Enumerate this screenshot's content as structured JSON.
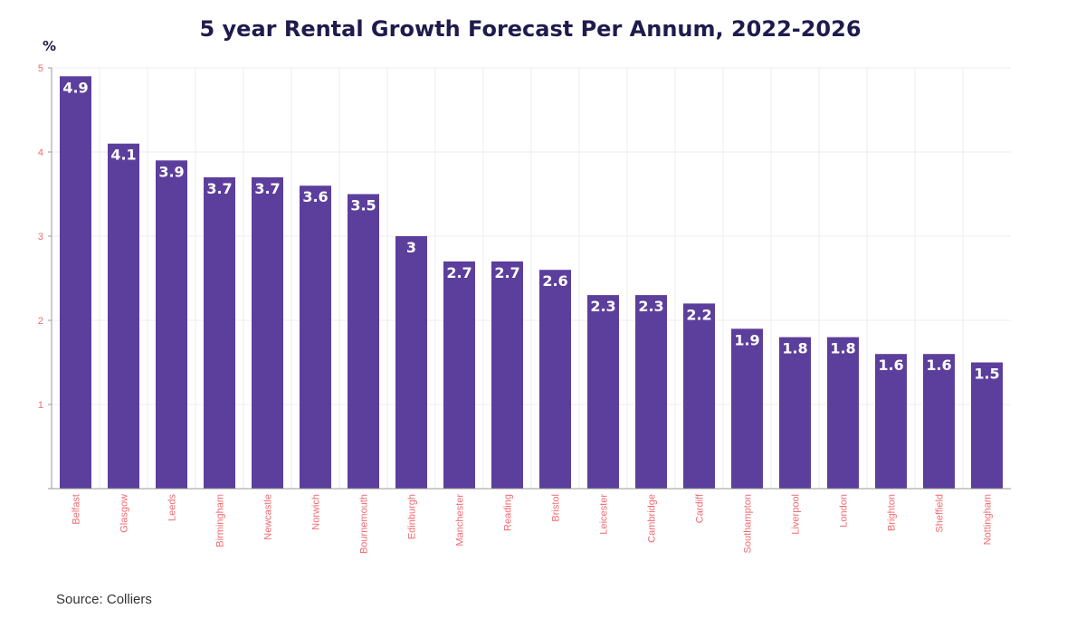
{
  "chart_data": {
    "type": "bar",
    "title": "5 year Rental Growth Forecast Per Annum, 2022-2026",
    "ylabel": "%",
    "xlabel": "",
    "ylim": [
      0,
      5
    ],
    "yticks": [
      1,
      2,
      3,
      4,
      5
    ],
    "grid": true,
    "categories": [
      "Belfast",
      "Glasgow",
      "Leeds",
      "Birmingham",
      "Newcastle",
      "Norwich",
      "Bournemouth",
      "Edinburgh",
      "Manchester",
      "Reading",
      "Bristol",
      "Leicester",
      "Cambridge",
      "Cardiff",
      "Southampton",
      "Liverpool",
      "London",
      "Brighton",
      "Sheffield",
      "Nottingham"
    ],
    "values": [
      4.9,
      4.1,
      3.9,
      3.7,
      3.7,
      3.6,
      3.5,
      3,
      2.7,
      2.7,
      2.6,
      2.3,
      2.3,
      2.2,
      1.9,
      1.8,
      1.8,
      1.6,
      1.6,
      1.5
    ],
    "colors": {
      "bar": "#5c3f9c",
      "bar_label": "#ffffff",
      "tick_label": "#f06a6f",
      "title": "#1f1b4d"
    }
  },
  "source": "Source: Colliers"
}
